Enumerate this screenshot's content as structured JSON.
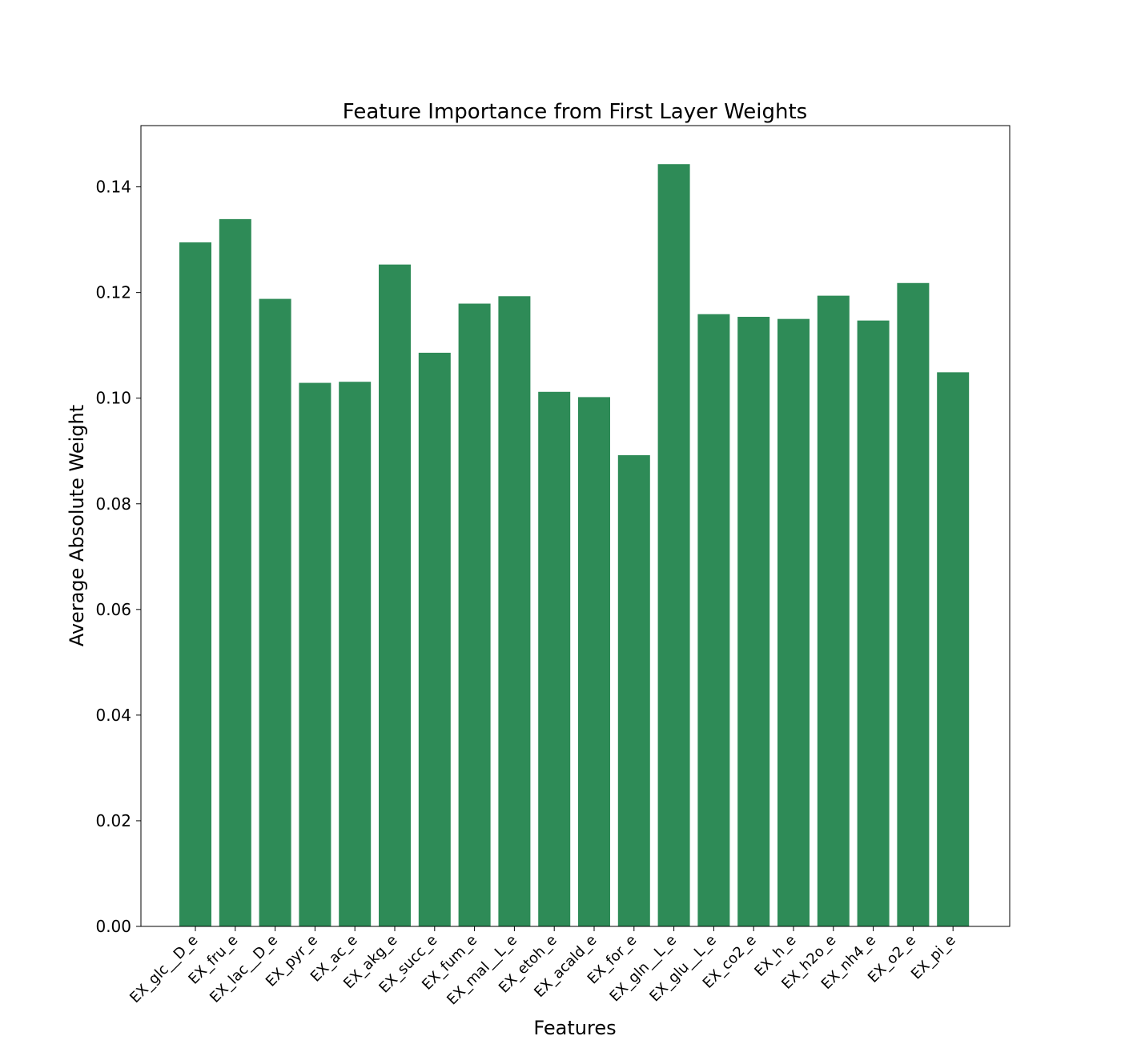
{
  "chart_data": {
    "type": "bar",
    "title": "Feature Importance from First Layer Weights",
    "xlabel": "Features",
    "ylabel": "Average Absolute Weight",
    "ylim": [
      0,
      0.1516
    ],
    "yticks": [
      "0.00",
      "0.02",
      "0.04",
      "0.06",
      "0.08",
      "0.10",
      "0.12",
      "0.14"
    ],
    "grid": false,
    "legend": "none",
    "bar_color": "#2e8b57",
    "categories": [
      "EX_glc__D_e",
      "EX_fru_e",
      "EX_lac__D_e",
      "EX_pyr_e",
      "EX_ac_e",
      "EX_akg_e",
      "EX_succ_e",
      "EX_fum_e",
      "EX_mal__L_e",
      "EX_etoh_e",
      "EX_acald_e",
      "EX_for_e",
      "EX_gln__L_e",
      "EX_glu__L_e",
      "EX_co2_e",
      "EX_h_e",
      "EX_h2o_e",
      "EX_nh4_e",
      "EX_o2_e",
      "EX_pi_e"
    ],
    "values": [
      0.1295,
      0.1339,
      0.1188,
      0.1029,
      0.1031,
      0.1253,
      0.1086,
      0.1179,
      0.1193,
      0.1012,
      0.1002,
      0.0892,
      0.1443,
      0.1159,
      0.1154,
      0.115,
      0.1194,
      0.1147,
      0.1218,
      0.1049
    ]
  }
}
